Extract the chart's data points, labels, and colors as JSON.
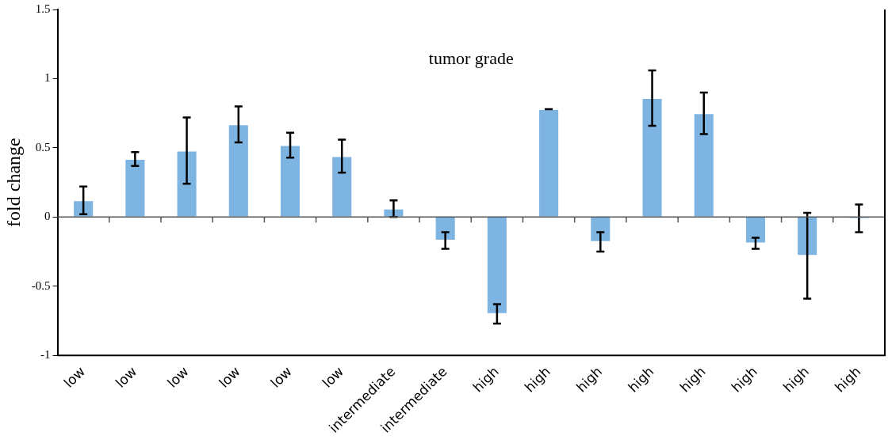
{
  "chart_data": {
    "type": "bar",
    "title": "tumor grade",
    "ylabel": "fold change",
    "categories": [
      "low",
      "low",
      "low",
      "low",
      "low",
      "low",
      "intermediate",
      "intermediate",
      "high",
      "high",
      "high",
      "high",
      "high",
      "high",
      "high",
      "high"
    ],
    "values": [
      0.12,
      0.42,
      0.48,
      0.67,
      0.52,
      0.44,
      0.06,
      -0.17,
      -0.7,
      0.78,
      -0.18,
      0.86,
      0.75,
      -0.19,
      -0.28,
      -0.01
    ],
    "errors": [
      0.1,
      0.05,
      0.24,
      0.13,
      0.09,
      0.12,
      0.06,
      0.06,
      0.07,
      0,
      0.07,
      0.2,
      0.15,
      0.04,
      0.31,
      0.1
    ],
    "color": "#7eb4e2",
    "ylim": [
      -1,
      1.5
    ],
    "yticks": [
      -1,
      -0.5,
      0,
      0.5,
      1,
      1.5
    ],
    "legend": false
  }
}
